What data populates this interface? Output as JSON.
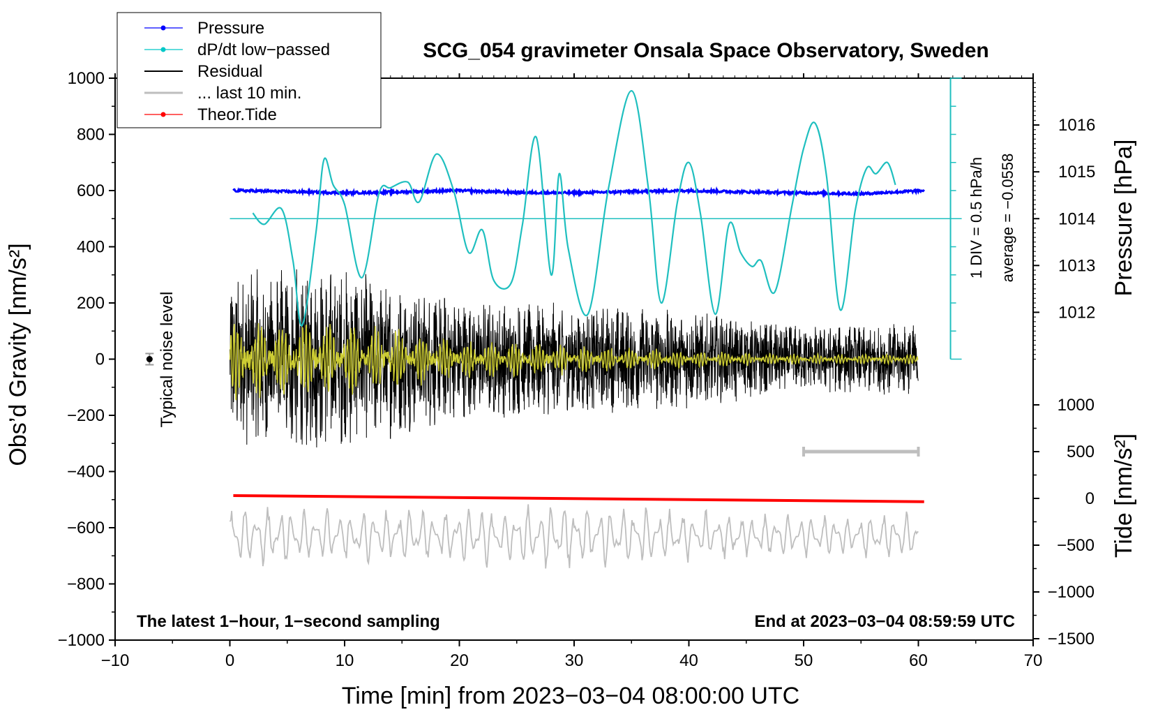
{
  "chart_data": {
    "type": "line",
    "title": "SCG_054 gravimeter Onsala Space Observatory, Sweden",
    "xlabel": "Time [min] from 2023−03−04 08:00:00 UTC",
    "ylabel_left": "Obs’d Gravity [nm/s²]",
    "ylabel_right_top": "Pressure [hPa]",
    "ylabel_right_bottom": "Tide [nm/s²]",
    "xlim": [
      -10,
      70
    ],
    "ylim": [
      -1000,
      1000
    ],
    "pressure_axis": {
      "range_hPa": [
        1011,
        1017
      ],
      "ticks": [
        1012,
        1013,
        1014,
        1015,
        1016
      ]
    },
    "tide_axis": {
      "range": [
        -1500,
        1500
      ],
      "ticks": [
        -1500,
        -1000,
        -500,
        0,
        500,
        1000
      ]
    },
    "x_ticks": [
      -10,
      0,
      10,
      20,
      30,
      40,
      50,
      60,
      70
    ],
    "x_tick_labels": [
      "−10",
      "0",
      "10",
      "20",
      "30",
      "40",
      "50",
      "60",
      "70"
    ],
    "y_ticks": [
      -1000,
      -800,
      -600,
      -400,
      -200,
      0,
      200,
      400,
      600,
      800,
      1000
    ],
    "y_tick_labels": [
      "−1000",
      "−800",
      "−600",
      "−400",
      "−200",
      "0",
      "200",
      "400",
      "600",
      "800",
      "1000"
    ],
    "pressure_tick_labels": [
      "1012",
      "1013",
      "1014",
      "1015",
      "1016"
    ],
    "tide_tick_labels": [
      "−1500",
      "−1000",
      "−500",
      "0",
      "500",
      "1000"
    ],
    "legend": {
      "placement": "top-left",
      "entries": [
        {
          "label": "Pressure",
          "color": "#0000ff",
          "marker": true
        },
        {
          "label": "dP/dt low−passed",
          "color": "#00c8c8",
          "marker": true
        },
        {
          "label": "Residual",
          "color": "#000000",
          "marker": false
        },
        {
          "label": "... last 10 min.",
          "color": "#bebebe",
          "marker": false
        },
        {
          "label": "Theor.Tide",
          "color": "#ff0000",
          "marker": true
        }
      ]
    },
    "annotations": {
      "bottom_left": "The latest 1−hour, 1−second sampling",
      "bottom_right": "End at 2023−03−04 08:59:59 UTC",
      "noise_label": "Typical noise level",
      "dpdt_scale": "1 DIV = 0.5 hPa/h",
      "dpdt_average": "average = −0.0558"
    },
    "noise_marker": {
      "x": -7,
      "y": 0,
      "error": 20
    },
    "grey_scale_bar": {
      "x_start": 50,
      "x_end": 60,
      "tide_value": 500
    },
    "dpdt_zero_level_gravity": 500,
    "series": [
      {
        "name": "Pressure",
        "units": "hPa",
        "color": "#0000ff",
        "x": [
          0.3,
          5,
          10,
          15,
          20,
          25,
          30,
          35,
          40,
          45,
          50,
          55,
          60.5
        ],
        "values": [
          1014.6,
          1014.58,
          1014.55,
          1014.57,
          1014.6,
          1014.56,
          1014.55,
          1014.58,
          1014.6,
          1014.57,
          1014.55,
          1014.53,
          1014.6
        ]
      },
      {
        "name": "dP/dt low−passed",
        "units": "gravity axis (1 DIV = 0.5 hPa/h)",
        "color": "#00c8c8",
        "x": [
          2,
          3,
          4.5,
          5.5,
          6.3,
          7.5,
          8.2,
          9,
          10,
          11.5,
          13,
          14,
          15.5,
          16.5,
          18,
          19.5,
          20.8,
          22,
          23,
          24.5,
          25.5,
          26.7,
          28,
          28.7,
          29.5,
          31.2,
          33,
          35,
          36.5,
          37.6,
          39,
          40,
          41,
          42.3,
          43.5,
          44.5,
          45.5,
          46.3,
          47.5,
          49,
          50,
          51,
          52,
          53.2,
          54.5,
          55.5,
          56.3,
          57.3,
          58
        ],
        "values": [
          520,
          480,
          535,
          350,
          120,
          450,
          710,
          620,
          550,
          290,
          590,
          610,
          630,
          560,
          730,
          600,
          380,
          460,
          280,
          270,
          480,
          790,
          300,
          660,
          390,
          160,
          610,
          955,
          600,
          200,
          560,
          700,
          520,
          160,
          480,
          380,
          330,
          350,
          240,
          550,
          750,
          840,
          650,
          175,
          530,
          680,
          660,
          700,
          620
        ]
      },
      {
        "name": "Theor.Tide",
        "units": "nm/s² (tide axis)",
        "color": "#ff0000",
        "x": [
          0.3,
          60.5
        ],
        "values": [
          30,
          -35
        ]
      },
      {
        "name": "Residual",
        "units": "nm/s²",
        "color": "#000000",
        "x": [
          0,
          10,
          20,
          30,
          40,
          50,
          60
        ],
        "amplitude": [
          320,
          330,
          220,
          200,
          180,
          120,
          130
        ]
      },
      {
        "name": "Residual low-passed",
        "units": "nm/s²",
        "color": "#cccc33",
        "x": [
          0,
          10,
          20,
          30,
          40,
          50,
          60
        ],
        "amplitude": [
          120,
          110,
          60,
          45,
          25,
          15,
          15
        ]
      },
      {
        "name": "... last 10 min.",
        "units": "nm/s² (tide axis)",
        "color": "#bebebe",
        "x": [
          0,
          10,
          20,
          30,
          40,
          50,
          60
        ],
        "center": [
          -400,
          -400,
          -400,
          -400,
          -400,
          -400,
          -400
        ],
        "amplitude": [
          420,
          330,
          330,
          420,
          320,
          250,
          280
        ]
      }
    ]
  }
}
